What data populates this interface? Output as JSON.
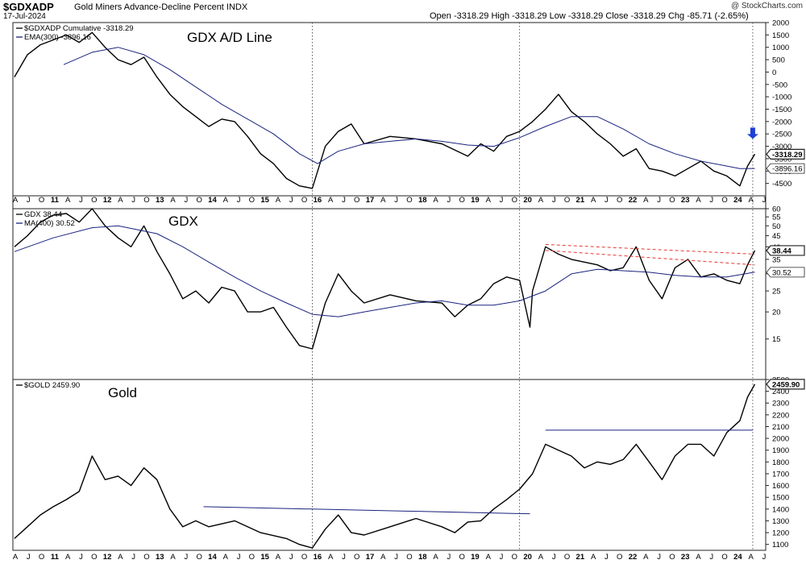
{
  "header": {
    "symbol": "$GDXADP",
    "subtitle": "Gold Miners Advance-Decline Percent INDX",
    "date": "17-Jul-2024",
    "ohlc": "Open -3318.29  High -3318.29  Low -3318.29  Close -3318.29  Chg -85.71 (-2.65%)",
    "watermark": "@ StockCharts.com"
  },
  "colors": {
    "price": "#000000",
    "average": "#1a237e",
    "trend": "#1a237e",
    "resistance": "#e53935",
    "arrow": "#1e3fd6",
    "grid": "#222222"
  },
  "x_axis": {
    "labels": [
      "A",
      "J",
      "O",
      "11",
      "A",
      "J",
      "O",
      "12",
      "A",
      "J",
      "O",
      "13",
      "A",
      "J",
      "O",
      "14",
      "A",
      "J",
      "O",
      "15",
      "A",
      "J",
      "O",
      "16",
      "A",
      "J",
      "O",
      "17",
      "A",
      "J",
      "O",
      "18",
      "A",
      "J",
      "O",
      "19",
      "A",
      "J",
      "O",
      "20",
      "A",
      "J",
      "O",
      "21",
      "A",
      "J",
      "O",
      "22",
      "A",
      "J",
      "O",
      "23",
      "A",
      "J",
      "O",
      "24",
      "A",
      "J"
    ],
    "vlines": [
      2016,
      2020,
      2024.5
    ]
  },
  "chart_data": [
    {
      "type": "line",
      "title": "GDX A/D Line",
      "series": [
        {
          "name": "$GDXADP Cumulative -3318.29",
          "role": "price",
          "x": [
            2010.25,
            2010.5,
            2010.75,
            2011,
            2011.25,
            2011.5,
            2011.75,
            2012,
            2012.25,
            2012.5,
            2012.75,
            2013,
            2013.25,
            2013.5,
            2013.75,
            2014,
            2014.25,
            2014.5,
            2014.75,
            2015,
            2015.25,
            2015.5,
            2015.75,
            2016,
            2016.25,
            2016.5,
            2016.75,
            2017,
            2017.5,
            2018,
            2018.5,
            2019,
            2019.25,
            2019.5,
            2019.75,
            2020,
            2020.25,
            2020.5,
            2020.75,
            2021,
            2021.25,
            2021.5,
            2021.75,
            2022,
            2022.25,
            2022.5,
            2022.75,
            2023,
            2023.25,
            2023.5,
            2023.75,
            2024,
            2024.25,
            2024.4,
            2024.54
          ],
          "y": [
            -200,
            700,
            1100,
            1300,
            1500,
            1200,
            1600,
            1000,
            500,
            300,
            600,
            -200,
            -900,
            -1400,
            -1800,
            -2200,
            -1900,
            -2000,
            -2600,
            -3300,
            -3700,
            -4300,
            -4600,
            -4700,
            -3000,
            -2400,
            -2100,
            -2900,
            -2600,
            -2700,
            -2900,
            -3400,
            -2900,
            -3200,
            -2600,
            -2400,
            -2000,
            -1500,
            -900,
            -1600,
            -2000,
            -2500,
            -2900,
            -3400,
            -3100,
            -3900,
            -4000,
            -4200,
            -3900,
            -3600,
            -4000,
            -4200,
            -4600,
            -3800,
            -3318.29
          ]
        },
        {
          "name": "EMA(300) -3896.16",
          "role": "average",
          "x": [
            2011.2,
            2011.75,
            2012.25,
            2012.75,
            2013.25,
            2013.75,
            2014.25,
            2014.75,
            2015.25,
            2015.75,
            2016.1,
            2016.5,
            2017,
            2017.5,
            2018,
            2018.5,
            2019,
            2019.5,
            2020,
            2020.5,
            2021,
            2021.5,
            2022,
            2022.5,
            2023,
            2023.5,
            2024,
            2024.25,
            2024.54
          ],
          "y": [
            300,
            800,
            1000,
            700,
            100,
            -600,
            -1300,
            -1900,
            -2500,
            -3300,
            -3700,
            -3200,
            -2900,
            -2800,
            -2700,
            -2800,
            -2950,
            -3000,
            -2650,
            -2200,
            -1800,
            -1800,
            -2300,
            -2900,
            -3300,
            -3600,
            -3800,
            -3900,
            -3896.16
          ]
        }
      ],
      "ylim": [
        -5000,
        2000
      ],
      "yticks": [
        2000,
        1500,
        1000,
        500,
        0,
        -500,
        -1000,
        -1500,
        -2000,
        -2500,
        -3000,
        -3500,
        -4000,
        -4500
      ],
      "last_labels": [
        {
          "text": "-3318.29",
          "value": -3318.29,
          "style": "price"
        },
        {
          "text": "-3896.16",
          "value": -3896.16,
          "style": "average"
        }
      ],
      "arrow": {
        "x": 2024.5,
        "value": -2700
      }
    },
    {
      "type": "line",
      "title": "GDX",
      "yscale": "log",
      "series": [
        {
          "name": "GDX 38.44",
          "role": "price",
          "x": [
            2010.25,
            2010.5,
            2010.75,
            2011,
            2011.25,
            2011.5,
            2011.75,
            2012,
            2012.25,
            2012.5,
            2012.75,
            2013,
            2013.25,
            2013.5,
            2013.75,
            2014,
            2014.25,
            2014.5,
            2014.75,
            2015,
            2015.25,
            2015.5,
            2015.75,
            2016,
            2016.25,
            2016.5,
            2016.75,
            2017,
            2017.5,
            2018,
            2018.5,
            2018.75,
            2019,
            2019.25,
            2019.5,
            2019.75,
            2020,
            2020.2,
            2020.25,
            2020.5,
            2020.75,
            2021,
            2021.25,
            2021.5,
            2021.75,
            2022,
            2022.25,
            2022.5,
            2022.75,
            2023,
            2023.25,
            2023.5,
            2023.75,
            2024,
            2024.25,
            2024.4,
            2024.54
          ],
          "y": [
            40,
            45,
            52,
            56,
            57,
            52,
            60,
            50,
            44,
            40,
            50,
            38,
            30,
            23,
            25,
            22,
            26,
            25,
            20,
            20,
            21,
            17,
            14,
            13.5,
            22,
            30,
            25,
            22,
            24,
            22.5,
            22,
            19,
            21.5,
            23,
            27,
            29,
            28,
            17,
            25,
            40,
            37,
            35,
            34,
            33,
            31,
            32,
            40,
            28,
            23,
            32,
            35,
            29,
            30,
            28,
            27,
            33,
            38.44
          ]
        },
        {
          "name": "MA(400) 30.52",
          "role": "average",
          "x": [
            2010.25,
            2011,
            2011.75,
            2012.25,
            2013,
            2013.5,
            2014,
            2014.5,
            2015,
            2015.5,
            2016,
            2016.5,
            2017,
            2017.5,
            2018,
            2018.5,
            2019,
            2019.5,
            2020,
            2020.5,
            2021,
            2021.5,
            2022,
            2022.5,
            2023,
            2023.5,
            2024,
            2024.54
          ],
          "y": [
            38,
            44,
            49,
            50,
            46,
            40,
            34,
            29,
            25,
            22,
            19.5,
            19,
            20,
            21,
            22,
            22.5,
            21.5,
            21.5,
            22.5,
            25,
            30,
            31.5,
            31,
            30.5,
            29.5,
            29,
            29,
            30.52
          ]
        }
      ],
      "ylim": [
        10,
        60
      ],
      "yticks": [
        60,
        55,
        50,
        45,
        40,
        35,
        30,
        25,
        20,
        15
      ],
      "trendlines": [
        {
          "style": "resistance",
          "x": [
            2020.5,
            2024.54
          ],
          "y": [
            41,
            37
          ]
        },
        {
          "style": "resistance",
          "x": [
            2020.5,
            2024.54
          ],
          "y": [
            38.5,
            33
          ]
        }
      ],
      "last_labels": [
        {
          "text": "38.44",
          "value": 38.44,
          "style": "price"
        },
        {
          "text": "30.52",
          "value": 30.52,
          "style": "average"
        }
      ]
    },
    {
      "type": "line",
      "title": "Gold",
      "series": [
        {
          "name": "$GOLD 2459.90",
          "role": "price",
          "x": [
            2010.25,
            2010.5,
            2010.75,
            2011,
            2011.25,
            2011.5,
            2011.75,
            2012,
            2012.25,
            2012.5,
            2012.75,
            2013,
            2013.25,
            2013.5,
            2013.75,
            2014,
            2014.5,
            2015,
            2015.5,
            2015.75,
            2016,
            2016.25,
            2016.5,
            2016.75,
            2017,
            2017.5,
            2018,
            2018.5,
            2018.75,
            2019,
            2019.25,
            2019.5,
            2019.75,
            2020,
            2020.25,
            2020.5,
            2020.75,
            2021,
            2021.25,
            2021.5,
            2021.75,
            2022,
            2022.25,
            2022.5,
            2022.75,
            2023,
            2023.25,
            2023.5,
            2023.75,
            2024,
            2024.25,
            2024.4,
            2024.54
          ],
          "y": [
            1150,
            1250,
            1350,
            1420,
            1480,
            1550,
            1850,
            1650,
            1680,
            1600,
            1750,
            1650,
            1400,
            1250,
            1300,
            1250,
            1300,
            1200,
            1150,
            1100,
            1070,
            1230,
            1350,
            1200,
            1180,
            1250,
            1320,
            1250,
            1200,
            1290,
            1300,
            1400,
            1480,
            1570,
            1700,
            1950,
            1900,
            1850,
            1750,
            1800,
            1780,
            1820,
            1950,
            1800,
            1650,
            1850,
            1950,
            1950,
            1850,
            2050,
            2150,
            2350,
            2459.9
          ]
        }
      ],
      "ylim": [
        1050,
        2500
      ],
      "yticks": [
        2500,
        2400,
        2300,
        2200,
        2100,
        2000,
        1900,
        1800,
        1700,
        1600,
        1500,
        1400,
        1300,
        1200,
        1100
      ],
      "trendlines": [
        {
          "style": "trend",
          "x": [
            2013.9,
            2020.2
          ],
          "y": [
            1420,
            1360
          ]
        },
        {
          "style": "trend",
          "x": [
            2020.5,
            2024.5
          ],
          "y": [
            2070,
            2070
          ]
        }
      ],
      "last_labels": [
        {
          "text": "2459.90",
          "value": 2459.9,
          "style": "price"
        }
      ]
    }
  ]
}
